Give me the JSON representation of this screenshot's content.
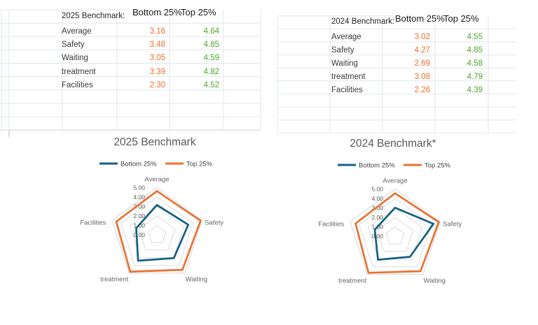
{
  "colors": {
    "accent_blue": "#156082",
    "accent_orange": "#E97132",
    "value_orange": "#E97132",
    "value_green": "#4EA72E",
    "gridline": "#e2e7e9"
  },
  "tables": {
    "left": {
      "title": "2025 Benchmark:",
      "col_bottom": "Bottom 25%",
      "col_top": "Top 25%",
      "rows": [
        {
          "label": "Average",
          "bottom": "3.16",
          "top": "4.64"
        },
        {
          "label": "Safety",
          "bottom": "3.48",
          "top": "4.85"
        },
        {
          "label": "Waiting",
          "bottom": "3.05",
          "top": "4.59"
        },
        {
          "label": "treatment",
          "bottom": "3.39",
          "top": "4.82"
        },
        {
          "label": "Facilities",
          "bottom": "2.30",
          "top": "4.52"
        }
      ]
    },
    "right": {
      "title": "2024 Benchmark:",
      "col_bottom": "Bottom 25%",
      "col_top": "Top 25%",
      "rows": [
        {
          "label": "Average",
          "bottom": "3.02",
          "top": "4.55"
        },
        {
          "label": "Safety",
          "bottom": "4.27",
          "top": "4.85"
        },
        {
          "label": "Waiting",
          "bottom": "2.69",
          "top": "4.58"
        },
        {
          "label": "treatment",
          "bottom": "3.08",
          "top": "4.79"
        },
        {
          "label": "Facilities",
          "bottom": "2.26",
          "top": "4.39"
        }
      ]
    }
  },
  "chart_data": [
    {
      "type": "radar",
      "title": "2025 Benchmark",
      "categories": [
        "Average",
        "Safety",
        "Waiting",
        "treatment",
        "Facilities"
      ],
      "series": [
        {
          "name": "Bottom 25%",
          "color": "#156082",
          "values": [
            3.16,
            3.48,
            3.05,
            3.39,
            2.3
          ]
        },
        {
          "name": "Top 25%",
          "color": "#E97132",
          "values": [
            4.64,
            4.85,
            4.59,
            4.82,
            4.52
          ]
        }
      ],
      "axis": {
        "min": 0,
        "max": 5,
        "step": 1,
        "tick_labels": [
          "0.00",
          "1.00",
          "2.00",
          "3.00",
          "4.00",
          "5.00"
        ]
      },
      "legend_position": "top",
      "grid": true
    },
    {
      "type": "radar",
      "title": "2024 Benchmark*",
      "categories": [
        "Average",
        "Safety",
        "Waiting",
        "treatment",
        "Facilities"
      ],
      "series": [
        {
          "name": "Bottom 25%",
          "color": "#156082",
          "values": [
            3.02,
            4.27,
            2.69,
            3.08,
            2.26
          ]
        },
        {
          "name": "Top 25%",
          "color": "#E97132",
          "values": [
            4.55,
            4.85,
            4.58,
            4.79,
            4.39
          ]
        }
      ],
      "axis": {
        "min": 0,
        "max": 5,
        "step": 1,
        "tick_labels": [
          "0.00",
          "1.00",
          "2.00",
          "3.00",
          "4.00",
          "5.00"
        ]
      },
      "legend_position": "top",
      "grid": true
    }
  ]
}
